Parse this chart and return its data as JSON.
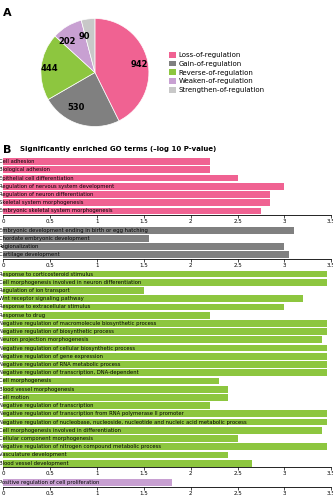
{
  "pie_values": [
    942,
    530,
    444,
    202,
    90
  ],
  "pie_labels": [
    "942",
    "530",
    "444",
    "202",
    "90"
  ],
  "pie_colors": [
    "#f06292",
    "#808080",
    "#8dc63f",
    "#c8a0d2",
    "#c8c8c8"
  ],
  "pie_legend_labels": [
    "Loss-of-regulation",
    "Gain-of-regulation",
    "Reverse-of-regulation",
    "Weaken-of-regulation",
    "Strengthen-of-regulation"
  ],
  "bar_section_title": "Significantly enriched GO terms (–log 10 P-value)",
  "groups": [
    {
      "color": "#f06292",
      "terms": [
        {
          "label": "Cell adhesion",
          "value": 2.2
        },
        {
          "label": "Biological adhesion",
          "value": 2.2
        },
        {
          "label": "Epithelial cell differentiation",
          "value": 2.5
        },
        {
          "label": "Regulation of nervous system development",
          "value": 3.0
        },
        {
          "label": "Regulation of neuron differentiation",
          "value": 2.85
        },
        {
          "label": "Skeletal system morphogenesis",
          "value": 2.85
        },
        {
          "label": "Embryonic skeletal system morphogenesis",
          "value": 2.75
        }
      ]
    },
    {
      "color": "#808080",
      "terms": [
        {
          "label": "Embryonic development ending in birth or egg hatching",
          "value": 3.1
        },
        {
          "label": "Chordate embryonic development",
          "value": 1.55
        },
        {
          "label": "Regionalization",
          "value": 3.0
        },
        {
          "label": "Cartilage development",
          "value": 3.05
        }
      ]
    },
    {
      "color": "#8dc63f",
      "terms": [
        {
          "label": "Response to corticosteroid stimulus",
          "value": 3.45
        },
        {
          "label": "Cell morphogenesis involved in neuron differentiation",
          "value": 3.45
        },
        {
          "label": "Regulation of ion transport",
          "value": 1.5
        },
        {
          "label": "Wnt receptor signaling pathway",
          "value": 3.2
        },
        {
          "label": "Response to extracellular stimulus",
          "value": 3.0
        },
        {
          "label": "Response to drug",
          "value": 2.2
        },
        {
          "label": "Negative regulation of macromolecule biosynthetic process",
          "value": 3.45
        },
        {
          "label": "Negative regulation of biosynthetic process",
          "value": 3.45
        },
        {
          "label": "Neuron projection morphogenesis",
          "value": 3.4
        },
        {
          "label": "Negative regulation of cellular biosynthetic process",
          "value": 3.45
        },
        {
          "label": "Negative regulation of gene expression",
          "value": 3.45
        },
        {
          "label": "Negative regulation of RNA metabolic process",
          "value": 3.45
        },
        {
          "label": "Negative regulation of transcription, DNA-dependent",
          "value": 3.45
        },
        {
          "label": "Cell morphogenesis",
          "value": 2.3
        },
        {
          "label": "Blood vessel morphogenesis",
          "value": 2.4
        },
        {
          "label": "Cell motion",
          "value": 2.4
        },
        {
          "label": "Negative regulation of transcription",
          "value": 2.2
        },
        {
          "label": "Negative regulation of transcription from RNA polymerase II promoter",
          "value": 3.45
        },
        {
          "label": "Negative regulation of nucleobase, nucleoside, nucleotide and nucleic acid metabolic process",
          "value": 3.45
        },
        {
          "label": "Cell morphogenesis involved in differentiation",
          "value": 3.4
        },
        {
          "label": "Cellular component morphogenesis",
          "value": 2.5
        },
        {
          "label": "Negative regulation of nitrogen compound metabolic process",
          "value": 3.45
        },
        {
          "label": "Vasculature development",
          "value": 2.4
        },
        {
          "label": "Blood vessel development",
          "value": 2.65
        }
      ]
    },
    {
      "color": "#c8a0d2",
      "terms": [
        {
          "label": "Positive regulation of cell proliferation",
          "value": 1.8
        }
      ]
    }
  ]
}
